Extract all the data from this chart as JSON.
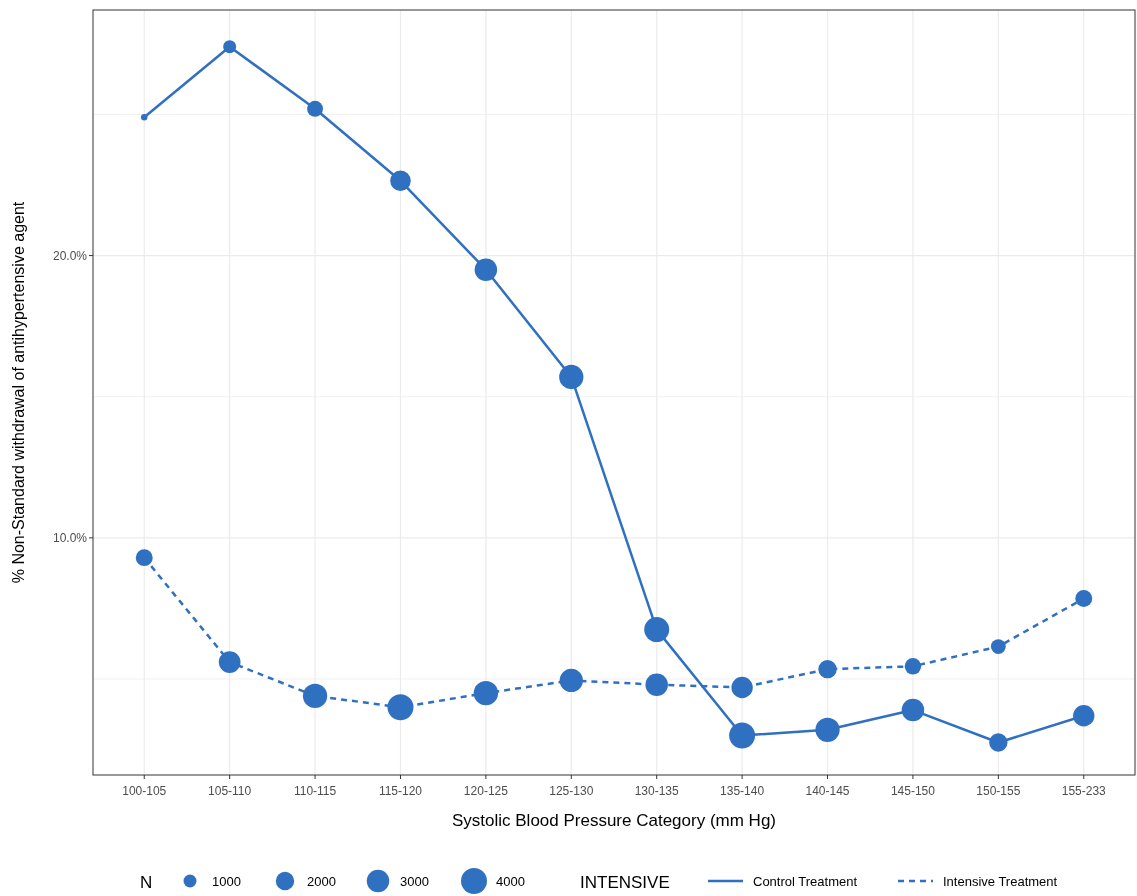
{
  "chart_data": {
    "type": "line",
    "xlabel": "Systolic Blood Pressure Category (mm Hg)",
    "ylabel": "% Non-Standard withdrawal of antihypertensive agent",
    "categories": [
      "100-105",
      "105-110",
      "110-115",
      "115-120",
      "120-125",
      "125-130",
      "130-135",
      "135-140",
      "140-145",
      "145-150",
      "150-155",
      "155-233"
    ],
    "series": [
      {
        "name": "Control Treatment",
        "color": "#3070c0",
        "line_style": "solid",
        "values": [
          24.9,
          27.4,
          25.2,
          22.65,
          19.5,
          15.7,
          6.75,
          3.0,
          3.2,
          3.9,
          2.75,
          3.7
        ]
      },
      {
        "name": "Intensive Treatment",
        "color": "#3070c0",
        "line_style": "dashed",
        "values": [
          9.3,
          5.6,
          4.4,
          4.0,
          4.5,
          4.95,
          4.8,
          4.7,
          5.35,
          5.45,
          6.15,
          7.85
        ]
      },
      {
        "type": "bubble",
        "color": "#3070c0",
        "values": [
          24.9,
          27.4,
          25.2,
          22.65,
          19.5,
          15.7,
          6.75,
          3.0,
          3.2,
          3.9,
          2.75,
          3.7
        ],
        "sizes": [
          250,
          1000,
          1500,
          2500,
          3000,
          3500,
          3700,
          4000,
          3500,
          3000,
          2000,
          2700
        ]
      },
      {
        "type": "bubble",
        "color": "#3070c0",
        "values": [
          9.3,
          5.6,
          4.4,
          4.0,
          4.5,
          4.95,
          4.8,
          4.7,
          5.35,
          5.45,
          6.15,
          7.85
        ],
        "sizes": [
          1700,
          2800,
          3500,
          4000,
          3500,
          3200,
          3000,
          2700,
          2000,
          1600,
          1300,
          1700
        ]
      }
    ],
    "size_legend": [
      1000,
      2000,
      3000,
      4000
    ],
    "legend_title": "INTENSIVE",
    "annotations": [
      "N"
    ],
    "ylim": [
      1.6,
      28.7
    ],
    "yticks": [
      {
        "value": 5,
        "label": null
      },
      {
        "value": 10,
        "label": "10.0%"
      },
      {
        "value": 15,
        "label": null
      },
      {
        "value": 20,
        "label": "20.0%"
      },
      {
        "value": 25,
        "label": null
      }
    ],
    "grid": true,
    "legend": "bottom"
  }
}
